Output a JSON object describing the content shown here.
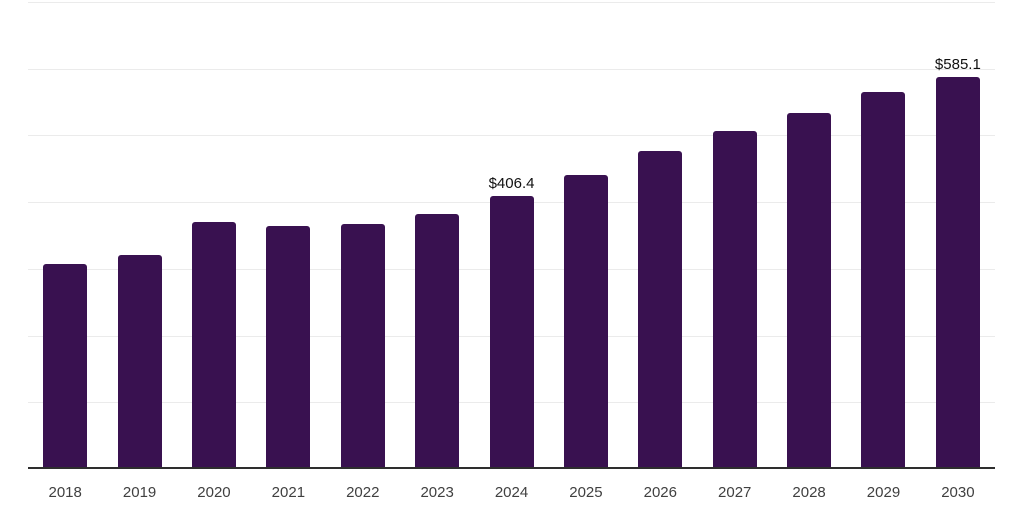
{
  "chart": {
    "background_color": "#ffffff",
    "bar_color": "#391150",
    "gridline_color": "#ebebeb",
    "axis_line_color": "#2e2e2e",
    "tick_label_color": "#404040",
    "data_label_color": "#111111"
  },
  "chart_data": {
    "type": "bar",
    "title": "",
    "xlabel": "",
    "ylabel": "",
    "categories": [
      "2018",
      "2019",
      "2020",
      "2021",
      "2022",
      "2023",
      "2024",
      "2025",
      "2026",
      "2027",
      "2028",
      "2029",
      "2030"
    ],
    "series": [
      {
        "name": "value",
        "values": [
          304,
          318,
          367,
          361,
          364,
          379,
          406.4,
          438,
          474,
          504,
          531,
          562,
          585.1
        ]
      }
    ],
    "data_labels": [
      {
        "category": "2024",
        "text": "$406.4"
      },
      {
        "category": "2030",
        "text": "$585.1"
      }
    ],
    "ylim": [
      0,
      700
    ],
    "grid_step": 100,
    "grid": true,
    "y_tick_labels_visible": false,
    "legend": false
  }
}
